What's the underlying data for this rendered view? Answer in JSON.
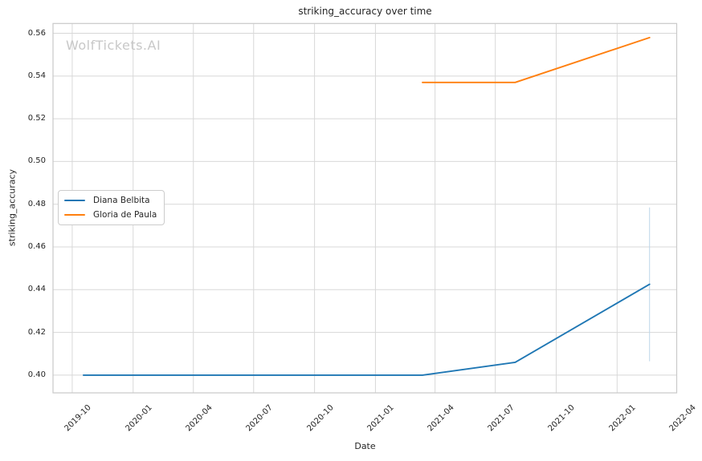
{
  "figure": {
    "watermark": "WolfTickets.AI"
  },
  "colors": {
    "background": "#ffffff",
    "grid": "#d8d8d8",
    "frame": "#c9c9c9",
    "text": "#262626",
    "watermark": "#c8c8c8",
    "series_blue": "#1f77b4",
    "series_orange": "#ff7f0e",
    "ci_line": "#bcd6ea"
  },
  "chart_data": {
    "type": "line",
    "title": "striking_accuracy over time",
    "xlabel": "Date",
    "ylabel": "striking_accuracy",
    "grid": true,
    "legend_position": "center-left",
    "x_ticks": [
      "2019-10",
      "2020-01",
      "2020-04",
      "2020-07",
      "2020-10",
      "2021-01",
      "2021-04",
      "2021-07",
      "2021-10",
      "2022-01",
      "2022-04"
    ],
    "y_ticks": [
      "0.56",
      "0.54",
      "0.52",
      "0.50",
      "0.48",
      "0.46",
      "0.44",
      "0.42",
      "0.40"
    ],
    "xlim": [
      "2019-09-02",
      "2022-04-01"
    ],
    "ylim": [
      0.3917,
      0.5646
    ],
    "series": [
      {
        "name": "Diana Belbita",
        "color": "#1f77b4",
        "points": [
          [
            "2019-10-18",
            0.4
          ],
          [
            "2021-03-13",
            0.4
          ],
          [
            "2021-07-31",
            0.406
          ],
          [
            "2022-02-19",
            0.4425
          ]
        ]
      },
      {
        "name": "Gloria de Paula",
        "color": "#ff7f0e",
        "points": [
          [
            "2021-03-13",
            0.537
          ],
          [
            "2021-07-31",
            0.537
          ],
          [
            "2022-02-19",
            0.558
          ]
        ]
      }
    ],
    "annotations": [
      {
        "type": "vline",
        "series": "Diana Belbita",
        "x": "2022-02-19",
        "y_from": 0.4065,
        "y_to": 0.4785,
        "color": "#bcd6ea"
      }
    ]
  }
}
